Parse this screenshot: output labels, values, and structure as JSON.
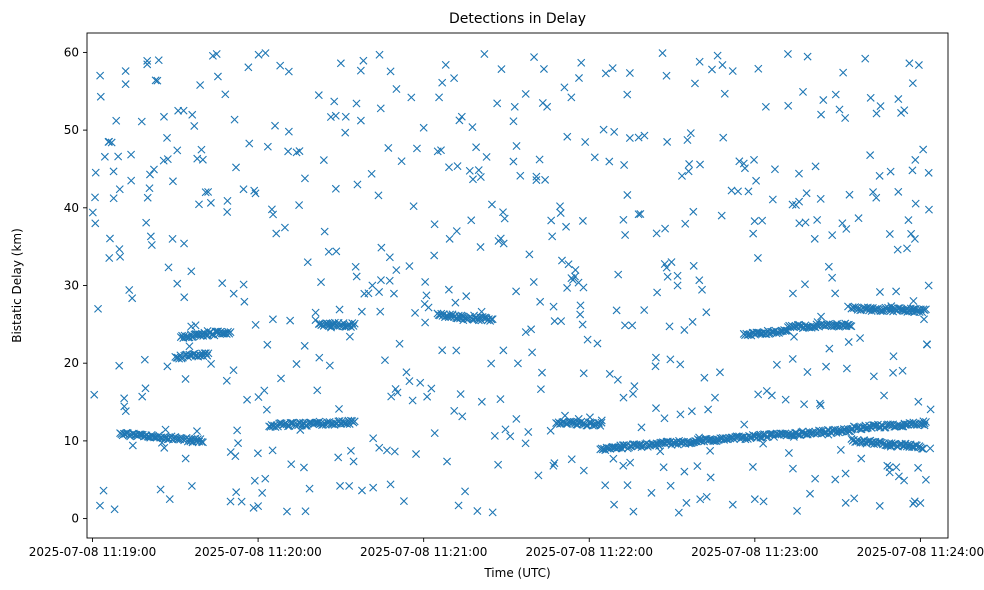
{
  "chart_data": {
    "type": "scatter",
    "title": "Detections in Delay",
    "xlabel": "Time (UTC)",
    "ylabel": "Bistatic Delay (km)",
    "x_ticks": [
      "2025-07-08 11:19:00",
      "2025-07-08 11:20:00",
      "2025-07-08 11:21:00",
      "2025-07-08 11:22:00",
      "2025-07-08 11:23:00",
      "2025-07-08 11:24:00"
    ],
    "y_ticks": [
      "0",
      "10",
      "20",
      "30",
      "40",
      "50",
      "60"
    ],
    "xlim": [
      "2025-07-08 11:18:58",
      "2025-07-08 11:24:10"
    ],
    "ylim": [
      -2.5,
      62.5
    ],
    "marker": "x",
    "color": "#1f77b4",
    "grid": false,
    "series": [
      {
        "tracks": [
          {
            "start": "2025-07-08 11:20:04",
            "end": "2025-07-08 11:20:35",
            "y_start": 12.0,
            "y_end": 12.4
          },
          {
            "start": "2025-07-08 11:21:48",
            "end": "2025-07-08 11:22:04",
            "y_start": 12.4,
            "y_end": 12.1
          },
          {
            "start": "2025-07-08 11:22:04",
            "end": "2025-07-08 11:23:02",
            "y_start": 9.0,
            "y_end": 10.6
          },
          {
            "start": "2025-07-08 11:23:02",
            "end": "2025-07-08 11:23:35",
            "y_start": 10.6,
            "y_end": 11.4
          },
          {
            "start": "2025-07-08 11:23:35",
            "end": "2025-07-08 11:24:02",
            "y_start": 11.6,
            "y_end": 12.3
          },
          {
            "start": "2025-07-08 11:23:35",
            "end": "2025-07-08 11:24:01",
            "y_start": 10.0,
            "y_end": 9.2
          },
          {
            "start": "2025-07-08 11:21:05",
            "end": "2025-07-08 11:21:25",
            "y_start": 26.2,
            "y_end": 25.6
          },
          {
            "start": "2025-07-08 11:19:10",
            "end": "2025-07-08 11:19:40",
            "y_start": 10.9,
            "y_end": 10.0
          },
          {
            "start": "2025-07-08 11:19:30",
            "end": "2025-07-08 11:19:42",
            "y_start": 20.7,
            "y_end": 21.2
          },
          {
            "start": "2025-07-08 11:22:56",
            "end": "2025-07-08 11:23:12",
            "y_start": 23.6,
            "y_end": 24.2
          },
          {
            "start": "2025-07-08 11:23:12",
            "end": "2025-07-08 11:23:35",
            "y_start": 24.7,
            "y_end": 24.9
          },
          {
            "start": "2025-07-08 11:23:35",
            "end": "2025-07-08 11:24:02",
            "y_start": 27.0,
            "y_end": 26.8
          },
          {
            "start": "2025-07-08 11:19:32",
            "end": "2025-07-08 11:19:50",
            "y_start": 23.4,
            "y_end": 24.0
          },
          {
            "start": "2025-07-08 11:20:22",
            "end": "2025-07-08 11:20:35",
            "y_start": 25.0,
            "y_end": 24.9
          }
        ],
        "points": [
          {
            "x": "2025-07-08 11:19:01",
            "y": 38.0
          },
          {
            "x": "2025-07-08 11:19:02",
            "y": 27.0
          },
          {
            "x": "2025-07-08 11:19:03",
            "y": 54.3
          },
          {
            "x": "2025-07-08 11:19:04",
            "y": 3.6
          },
          {
            "x": "2025-07-08 11:19:06",
            "y": 48.5
          },
          {
            "x": "2025-07-08 11:19:08",
            "y": 1.2
          },
          {
            "x": "2025-07-08 11:19:10",
            "y": 33.7
          },
          {
            "x": "2025-07-08 11:19:12",
            "y": 57.6
          },
          {
            "x": "2025-07-08 11:19:14",
            "y": 43.5
          },
          {
            "x": "2025-07-08 11:19:18",
            "y": 15.7
          },
          {
            "x": "2025-07-08 11:19:20",
            "y": 41.3
          },
          {
            "x": "2025-07-08 11:19:24",
            "y": 59.0
          },
          {
            "x": "2025-07-08 11:19:27",
            "y": 49.0
          },
          {
            "x": "2025-07-08 11:19:29",
            "y": 36.0
          },
          {
            "x": "2025-07-08 11:19:33",
            "y": 52.5
          },
          {
            "x": "2025-07-08 11:19:36",
            "y": 4.2
          },
          {
            "x": "2025-07-08 11:19:39",
            "y": 55.8
          },
          {
            "x": "2025-07-08 11:19:41",
            "y": 42.0
          },
          {
            "x": "2025-07-08 11:19:45",
            "y": 59.8
          },
          {
            "x": "2025-07-08 11:19:47",
            "y": 30.3
          },
          {
            "x": "2025-07-08 11:19:50",
            "y": 2.2
          },
          {
            "x": "2025-07-08 11:19:52",
            "y": 45.2
          },
          {
            "x": "2025-07-08 11:19:56",
            "y": 15.3
          },
          {
            "x": "2025-07-08 11:20:00",
            "y": 1.6
          },
          {
            "x": "2025-07-08 11:20:05",
            "y": 39.8
          },
          {
            "x": "2025-07-08 11:20:08",
            "y": 58.3
          },
          {
            "x": "2025-07-08 11:20:12",
            "y": 7.0
          },
          {
            "x": "2025-07-08 11:20:15",
            "y": 47.3
          },
          {
            "x": "2025-07-08 11:20:18",
            "y": 33.0
          },
          {
            "x": "2025-07-08 11:20:22",
            "y": 54.5
          },
          {
            "x": "2025-07-08 11:20:26",
            "y": 19.7
          },
          {
            "x": "2025-07-08 11:20:30",
            "y": 58.6
          },
          {
            "x": "2025-07-08 11:20:33",
            "y": 4.2
          },
          {
            "x": "2025-07-08 11:20:36",
            "y": 43.0
          },
          {
            "x": "2025-07-08 11:20:40",
            "y": 29.0
          },
          {
            "x": "2025-07-08 11:20:44",
            "y": 59.7
          },
          {
            "x": "2025-07-08 11:20:48",
            "y": 4.4
          },
          {
            "x": "2025-07-08 11:20:52",
            "y": 46.0
          },
          {
            "x": "2025-07-08 11:20:56",
            "y": 15.2
          },
          {
            "x": "2025-07-08 11:21:00",
            "y": 50.3
          },
          {
            "x": "2025-07-08 11:21:04",
            "y": 11.0
          },
          {
            "x": "2025-07-08 11:21:08",
            "y": 58.4
          },
          {
            "x": "2025-07-08 11:21:12",
            "y": 37.0
          },
          {
            "x": "2025-07-08 11:21:15",
            "y": 3.5
          },
          {
            "x": "2025-07-08 11:21:19",
            "y": 47.8
          },
          {
            "x": "2025-07-08 11:21:22",
            "y": 59.8
          },
          {
            "x": "2025-07-08 11:21:25",
            "y": 0.8
          },
          {
            "x": "2025-07-08 11:21:29",
            "y": 35.4
          },
          {
            "x": "2025-07-08 11:21:33",
            "y": 53.0
          },
          {
            "x": "2025-07-08 11:21:37",
            "y": 24.0
          },
          {
            "x": "2025-07-08 11:21:40",
            "y": 59.4
          },
          {
            "x": "2025-07-08 11:21:44",
            "y": 43.6
          },
          {
            "x": "2025-07-08 11:21:47",
            "y": 6.8
          },
          {
            "x": "2025-07-08 11:21:51",
            "y": 55.5
          },
          {
            "x": "2025-07-08 11:21:55",
            "y": 32.0
          },
          {
            "x": "2025-07-08 11:21:58",
            "y": 18.7
          },
          {
            "x": "2025-07-08 11:22:02",
            "y": 46.5
          },
          {
            "x": "2025-07-08 11:22:06",
            "y": 57.3
          },
          {
            "x": "2025-07-08 11:22:09",
            "y": 1.8
          },
          {
            "x": "2025-07-08 11:22:13",
            "y": 36.5
          },
          {
            "x": "2025-07-08 11:22:16",
            "y": 0.9
          },
          {
            "x": "2025-07-08 11:22:20",
            "y": 49.3
          },
          {
            "x": "2025-07-08 11:22:24",
            "y": 19.6
          },
          {
            "x": "2025-07-08 11:22:28",
            "y": 57.0
          },
          {
            "x": "2025-07-08 11:22:32",
            "y": 30.0
          },
          {
            "x": "2025-07-08 11:22:36",
            "y": 44.7
          },
          {
            "x": "2025-07-08 11:22:40",
            "y": 58.8
          },
          {
            "x": "2025-07-08 11:22:44",
            "y": 5.3
          },
          {
            "x": "2025-07-08 11:22:48",
            "y": 39.0
          },
          {
            "x": "2025-07-08 11:22:52",
            "y": 57.6
          },
          {
            "x": "2025-07-08 11:22:56",
            "y": 45.7
          },
          {
            "x": "2025-07-08 11:23:00",
            "y": 2.5
          },
          {
            "x": "2025-07-08 11:23:04",
            "y": 53.0
          },
          {
            "x": "2025-07-08 11:23:08",
            "y": 19.8
          },
          {
            "x": "2025-07-08 11:23:12",
            "y": 59.8
          },
          {
            "x": "2025-07-08 11:23:16",
            "y": 44.4
          },
          {
            "x": "2025-07-08 11:23:20",
            "y": 3.2
          },
          {
            "x": "2025-07-08 11:23:24",
            "y": 52.0
          },
          {
            "x": "2025-07-08 11:23:28",
            "y": 31.0
          },
          {
            "x": "2025-07-08 11:23:32",
            "y": 57.4
          },
          {
            "x": "2025-07-08 11:23:36",
            "y": 2.6
          },
          {
            "x": "2025-07-08 11:23:40",
            "y": 59.2
          },
          {
            "x": "2025-07-08 11:23:44",
            "y": 41.3
          },
          {
            "x": "2025-07-08 11:23:48",
            "y": 6.8
          },
          {
            "x": "2025-07-08 11:23:52",
            "y": 54.0
          },
          {
            "x": "2025-07-08 11:23:56",
            "y": 58.6
          },
          {
            "x": "2025-07-08 11:23:58",
            "y": 36.0
          },
          {
            "x": "2025-07-08 11:24:00",
            "y": 2.0
          },
          {
            "x": "2025-07-08 11:24:01",
            "y": 47.5
          },
          {
            "x": "2025-07-08 11:24:02",
            "y": 5.0
          },
          {
            "x": "2025-07-08 11:24:03",
            "y": 44.5
          },
          {
            "x": "2025-07-08 11:24:03",
            "y": 30.0
          }
        ]
      }
    ]
  }
}
